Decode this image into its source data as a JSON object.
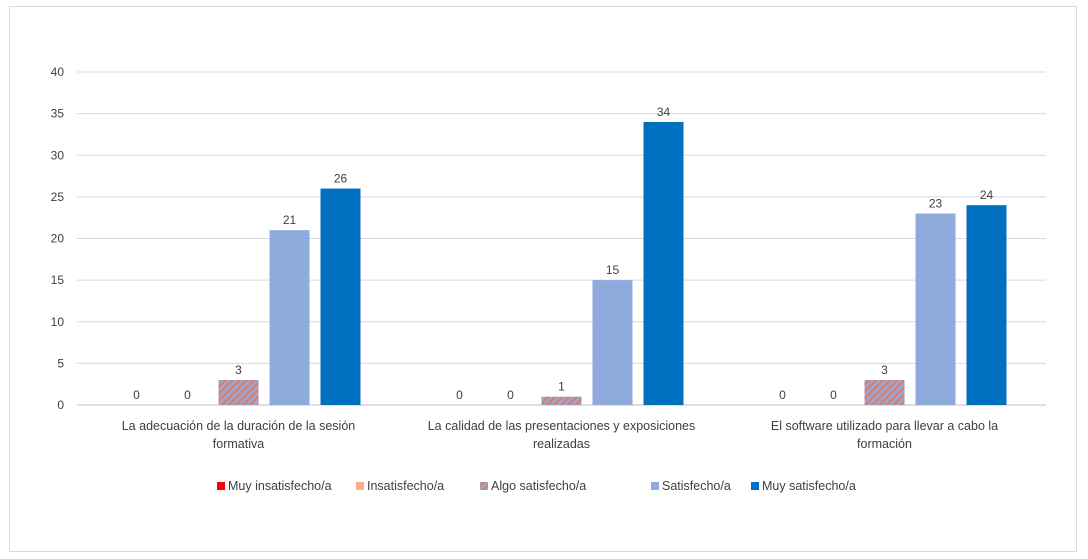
{
  "chart_data": {
    "type": "bar",
    "categories": [
      [
        "La adecuación de la duración de la sesión",
        "formativa"
      ],
      [
        "La calidad de las presentaciones y exposiciones",
        "realizadas"
      ],
      [
        "El software utilizado para llevar a cabo la",
        "formación"
      ]
    ],
    "series": [
      {
        "name": "Muy insatisfecho/a",
        "values": [
          0,
          0,
          0
        ],
        "color": "#ff0000",
        "pattern": false
      },
      {
        "name": "Insatisfecho/a",
        "values": [
          0,
          0,
          0
        ],
        "color": "#f4b183",
        "pattern": false
      },
      {
        "name": "Algo satisfecho/a",
        "values": [
          3,
          1,
          3
        ],
        "color": "#8faadc",
        "pattern": true,
        "pattern_color": "#e07b6f"
      },
      {
        "name": "Satisfecho/a",
        "values": [
          21,
          15,
          23
        ],
        "color": "#8faadc",
        "pattern": false
      },
      {
        "name": "Muy satisfecho/a",
        "values": [
          26,
          34,
          24
        ],
        "color": "#0070c0",
        "pattern": false
      }
    ],
    "yticks": [
      0,
      5,
      10,
      15,
      20,
      25,
      30,
      35,
      40
    ],
    "ylim": [
      0,
      40
    ],
    "grid": true,
    "legend_position": "bottom"
  }
}
